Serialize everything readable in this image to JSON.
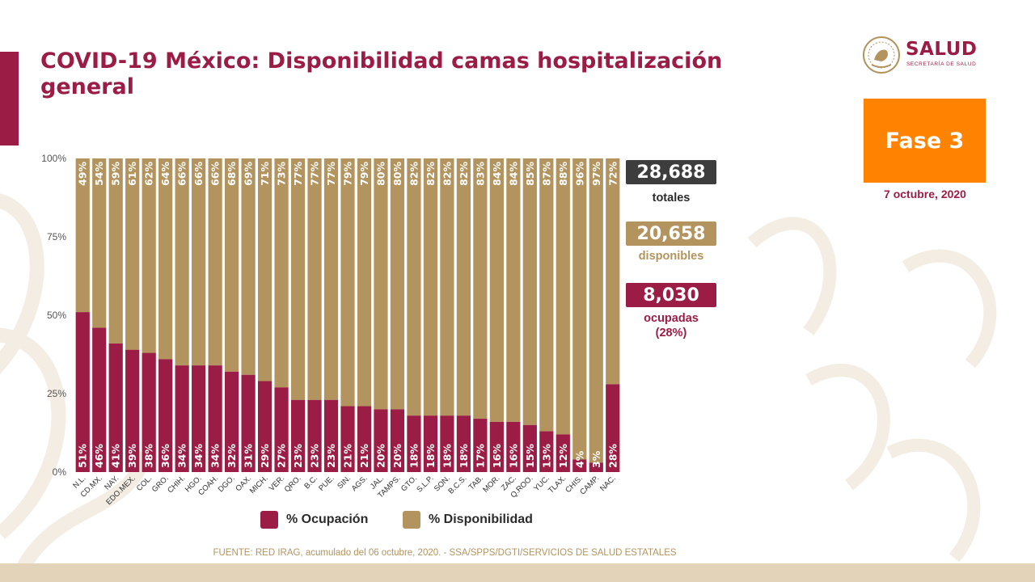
{
  "title": "COVID-19 México: Disponibilidad camas hospitalización general",
  "logo": {
    "name": "SALUD",
    "subtitle": "SECRETARÍA DE SALUD"
  },
  "phase": "Fase 3",
  "date": "7 octubre, 2020",
  "stats": {
    "total_value": "28,688",
    "total_label": "totales",
    "available_value": "20,658",
    "available_label": "disponibles",
    "occupied_value": "8,030",
    "occupied_label": "ocupadas",
    "occupied_pct": "(28%)"
  },
  "legend": {
    "occupied": "% Ocupación",
    "available": "% Disponibilidad"
  },
  "source": "FUENTE: RED IRAG, acumulado del 06 octubre, 2020. -  SSA/SPPS/DGTI/SERVICIOS DE SALUD ESTATALES",
  "colors": {
    "accent": "#9b1d45",
    "occupied": "#9b1d45",
    "available": "#b3945e",
    "phase": "#ff8200",
    "total_box": "#3d3d3d"
  },
  "chart_data": {
    "type": "bar",
    "stacked": true,
    "categories": [
      "N.L.",
      "CD.MX.",
      "NAY.",
      "EDO.MEX.",
      "COL.",
      "GRO.",
      "CHIH.",
      "HGO.",
      "COAH.",
      "DGO.",
      "OAX.",
      "MICH.",
      "VER.",
      "QRO.",
      "B.C.",
      "PUE.",
      "SIN.",
      "AGS.",
      "JAL.",
      "TAMPS.",
      "GTO.",
      "S.L.P.",
      "SON.",
      "B.C.S.",
      "TAB.",
      "MOR.",
      "ZAC.",
      "Q.ROO.",
      "YUC.",
      "TLAX.",
      "CHIS.",
      "CAMP.",
      "NAC."
    ],
    "series": [
      {
        "name": "% Ocupación",
        "values": [
          51,
          46,
          41,
          39,
          38,
          36,
          34,
          34,
          34,
          32,
          31,
          29,
          27,
          23,
          23,
          23,
          21,
          21,
          20,
          20,
          18,
          18,
          18,
          18,
          17,
          16,
          16,
          15,
          13,
          12,
          4,
          3,
          28
        ],
        "labels": [
          "51%",
          "46%",
          "41%",
          "39%",
          "38%",
          "36%",
          "34%",
          "34%",
          "34%",
          "32%",
          "31%",
          "29%",
          "27%",
          "23%",
          "23%",
          "23%",
          "21%",
          "21%",
          "20%",
          "20%",
          "18%",
          "18%",
          "18%",
          "18%",
          "17%",
          "16%",
          "16%",
          "15%",
          "13%",
          "12%",
          "4%",
          "3%",
          "28%"
        ]
      },
      {
        "name": "% Disponibilidad",
        "values": [
          49,
          54,
          59,
          61,
          62,
          64,
          66,
          66,
          66,
          68,
          69,
          71,
          73,
          77,
          77,
          77,
          79,
          79,
          80,
          80,
          82,
          82,
          82,
          82,
          83,
          84,
          84,
          85,
          87,
          88,
          96,
          97,
          72
        ],
        "labels": [
          "49%",
          "54%",
          "59%",
          "61%",
          "62%",
          "64%",
          "66%",
          "66%",
          "66%",
          "68%",
          "69%",
          "71%",
          "73%",
          "77%",
          "77%",
          "77%",
          "79%",
          "79%",
          "80%",
          "80%",
          "82%",
          "82%",
          "82%",
          "82%",
          "83%",
          "84%",
          "84%",
          "85%",
          "87%",
          "88%",
          "96%",
          "97%",
          "72%"
        ]
      }
    ],
    "y_ticks": [
      "0%",
      "25%",
      "50%",
      "75%",
      "100%"
    ],
    "ylim": [
      0,
      100
    ],
    "legend_position": "bottom"
  }
}
